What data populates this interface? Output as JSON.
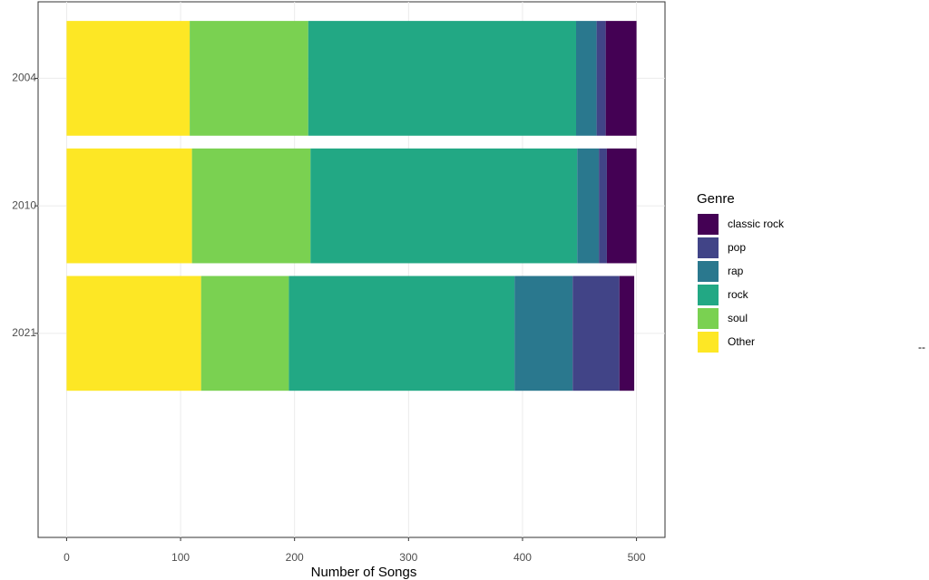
{
  "chart_data": {
    "type": "stacked-bar",
    "orientation": "horizontal",
    "x_label": "Number of Songs",
    "categories": [
      "2004",
      "2010",
      "2021"
    ],
    "legend_title": "Genre",
    "legend_position": "right",
    "series": [
      {
        "name": "classic rock",
        "color": "#440154",
        "values": [
          27,
          26,
          13
        ]
      },
      {
        "name": "pop",
        "color": "#414487",
        "values": [
          8,
          7,
          41
        ]
      },
      {
        "name": "rap",
        "color": "#2a788e",
        "values": [
          18,
          19,
          51
        ]
      },
      {
        "name": "rock",
        "color": "#22a884",
        "values": [
          235,
          234,
          198
        ]
      },
      {
        "name": "soul",
        "color": "#7ad151",
        "values": [
          104,
          104,
          77
        ]
      },
      {
        "name": "Other",
        "color": "#fde725",
        "values": [
          108,
          110,
          118
        ]
      }
    ],
    "xlim": [
      -25,
      525
    ],
    "xticks": [
      0,
      100,
      200,
      300,
      400,
      500
    ],
    "grid": true,
    "annotation": "--"
  }
}
